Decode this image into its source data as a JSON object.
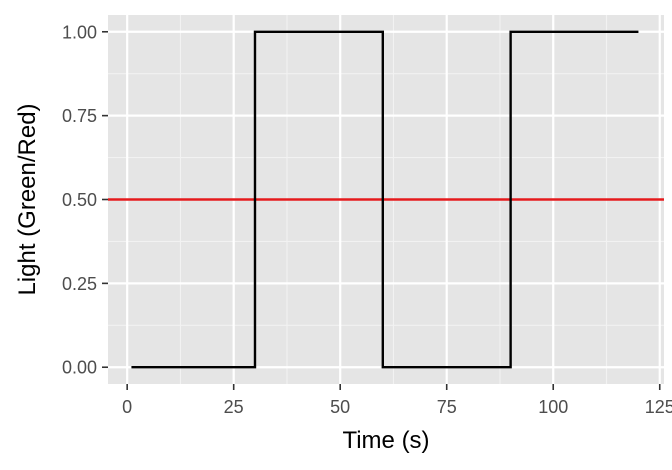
{
  "chart_data": {
    "type": "line",
    "xlabel": "Time (s)",
    "ylabel": "Light (Green/Red)",
    "xlim": [
      -4.5,
      126
    ],
    "ylim": [
      -0.05,
      1.05
    ],
    "x_ticks": [
      0,
      25,
      50,
      75,
      100,
      125
    ],
    "x_tick_labels": [
      "0",
      "25",
      "50",
      "75",
      "100",
      "125"
    ],
    "y_ticks": [
      0,
      0.25,
      0.5,
      0.75,
      1.0
    ],
    "y_tick_labels": [
      "0.00",
      "0.25",
      "0.50",
      "0.75",
      "1.00"
    ],
    "grid": true,
    "series": [
      {
        "type": "step",
        "color": "#000000",
        "points": [
          [
            1,
            0
          ],
          [
            30,
            0
          ],
          [
            30,
            1
          ],
          [
            60,
            1
          ],
          [
            60,
            0
          ],
          [
            90,
            0
          ],
          [
            90,
            1
          ],
          [
            120,
            1
          ]
        ]
      }
    ],
    "hlines": [
      {
        "y": 0.5,
        "color": "#e41a1c"
      }
    ],
    "colors": {
      "panel_background": "#e5e5e5",
      "grid_major": "#ffffff",
      "grid_minor": "#f2f2f2",
      "tick": "#333333"
    }
  }
}
